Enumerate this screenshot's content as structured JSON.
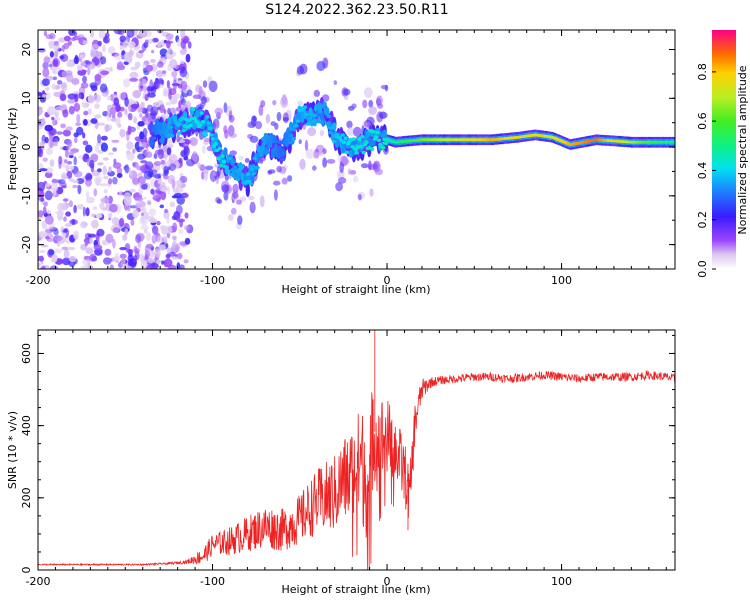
{
  "title": "S124.2022.362.23.50.R11",
  "colors": {
    "signal_trace": "#ee2222",
    "frame": "#000000"
  },
  "chart_data": [
    {
      "type": "heatmap",
      "title": "",
      "xlabel": "Height of straight line (km)",
      "ylabel": "Frequency (Hz)",
      "xlim": [
        -200,
        165
      ],
      "ylim": [
        -25,
        24
      ],
      "xticks": [
        -200,
        -100,
        0,
        100
      ],
      "xtick_labels": [
        "-200",
        "-100",
        "0",
        "100"
      ],
      "yticks": [
        -20,
        -10,
        0,
        10,
        20
      ],
      "ytick_labels": [
        "-20",
        "-10",
        "0",
        "10",
        "20"
      ],
      "colorbar": {
        "label": "Normalized spectral amplitude",
        "range": [
          0,
          0.97
        ],
        "ticks": [
          0.0,
          0.2,
          0.4,
          0.6,
          0.8
        ],
        "tick_labels": [
          "0.0",
          "0.2",
          "0.4",
          "0.6",
          "0.8"
        ]
      },
      "noise_region": {
        "x_range": [
          -200,
          -113
        ],
        "freq_range": [
          -25,
          24
        ],
        "amplitude_range": [
          0.05,
          0.25
        ]
      },
      "ridge": [
        {
          "x": -135,
          "freq": 2.5,
          "amp": 0.3
        },
        {
          "x": -110,
          "freq": 6,
          "amp": 0.45
        },
        {
          "x": -102,
          "freq": 4,
          "amp": 0.4
        },
        {
          "x": -95,
          "freq": -2,
          "amp": 0.45
        },
        {
          "x": -88,
          "freq": -4,
          "amp": 0.35
        },
        {
          "x": -80,
          "freq": -7,
          "amp": 0.4
        },
        {
          "x": -70,
          "freq": 1,
          "amp": 0.35
        },
        {
          "x": -60,
          "freq": -1,
          "amp": 0.3
        },
        {
          "x": -50,
          "freq": 6,
          "amp": 0.4
        },
        {
          "x": -35,
          "freq": 7,
          "amp": 0.35
        },
        {
          "x": -28,
          "freq": 1,
          "amp": 0.4
        },
        {
          "x": -18,
          "freq": 0,
          "amp": 0.45
        },
        {
          "x": -5,
          "freq": 2,
          "amp": 0.45
        },
        {
          "x": 5,
          "freq": 1,
          "amp": 0.5
        },
        {
          "x": 20,
          "freq": 1.5,
          "amp": 0.65
        },
        {
          "x": 40,
          "freq": 1.5,
          "amp": 0.75
        },
        {
          "x": 60,
          "freq": 1.5,
          "amp": 0.85
        },
        {
          "x": 75,
          "freq": 2,
          "amp": 0.8
        },
        {
          "x": 85,
          "freq": 2.5,
          "amp": 0.8
        },
        {
          "x": 95,
          "freq": 2,
          "amp": 0.75
        },
        {
          "x": 105,
          "freq": 0.5,
          "amp": 0.85
        },
        {
          "x": 120,
          "freq": 1.5,
          "amp": 0.9
        },
        {
          "x": 140,
          "freq": 1,
          "amp": 0.7
        },
        {
          "x": 165,
          "freq": 1,
          "amp": 0.5
        }
      ]
    },
    {
      "type": "line",
      "title": "",
      "xlabel": "Height of straight line (km)",
      "ylabel": "SNR (10 * v/v)",
      "xlim": [
        -200,
        165
      ],
      "ylim": [
        0,
        665
      ],
      "xticks": [
        -200,
        -100,
        0,
        100
      ],
      "xtick_labels": [
        "-200",
        "-100",
        "0",
        "100"
      ],
      "yticks": [
        0,
        200,
        400,
        600
      ],
      "ytick_labels": [
        "0",
        "200",
        "400",
        "600"
      ],
      "series": [
        {
          "name": "SNR",
          "color": "#ee2222",
          "x": [
            -200,
            -180,
            -160,
            -140,
            -125,
            -115,
            -105,
            -100,
            -90,
            -80,
            -70,
            -60,
            -50,
            -40,
            -30,
            -25,
            -20,
            -15,
            -10,
            -8,
            -5,
            0,
            5,
            10,
            13,
            16,
            20,
            25,
            30,
            40,
            50,
            60,
            70,
            80,
            90,
            100,
            110,
            120,
            130,
            140,
            150,
            160,
            165
          ],
          "values": [
            15,
            15,
            15,
            15,
            18,
            22,
            40,
            70,
            80,
            100,
            120,
            110,
            140,
            190,
            210,
            250,
            260,
            300,
            230,
            400,
            350,
            370,
            330,
            270,
            200,
            410,
            500,
            520,
            525,
            530,
            535,
            535,
            530,
            535,
            540,
            535,
            530,
            535,
            535,
            535,
            540,
            535,
            530
          ],
          "ripple": [
            2,
            2,
            2,
            2,
            3,
            5,
            25,
            30,
            40,
            50,
            60,
            60,
            70,
            90,
            110,
            120,
            140,
            160,
            180,
            160,
            140,
            110,
            100,
            90,
            80,
            60,
            30,
            15,
            12,
            12,
            12,
            12,
            12,
            12,
            12,
            12,
            12,
            12,
            12,
            12,
            12,
            12,
            12
          ]
        }
      ],
      "annotations": [
        {
          "x": -7,
          "y": 665,
          "label": ""
        },
        {
          "x": 12,
          "y": 110,
          "label": ""
        }
      ]
    }
  ]
}
